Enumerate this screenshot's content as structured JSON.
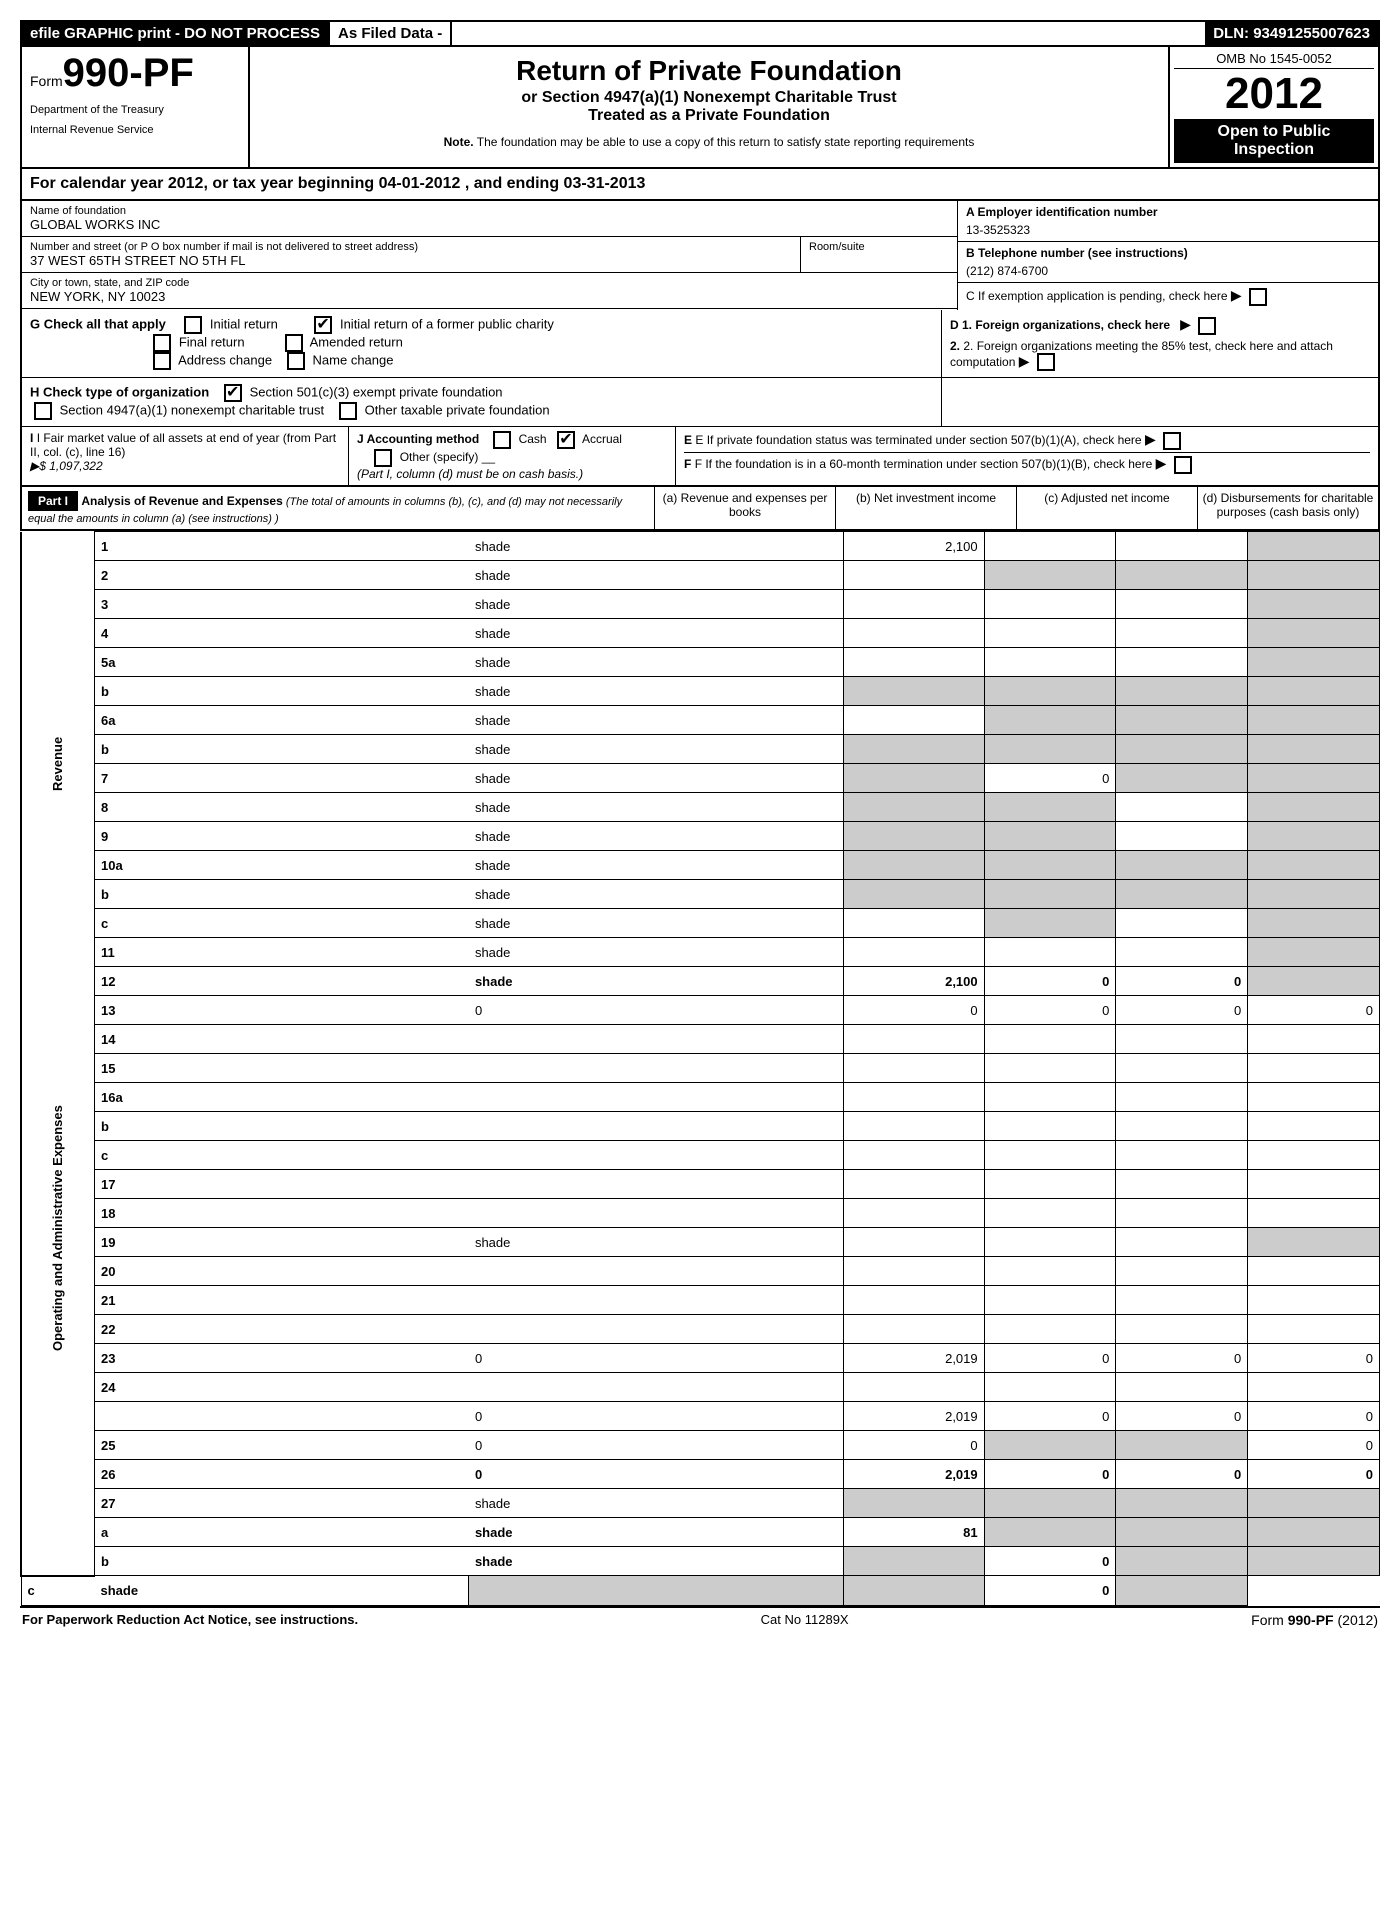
{
  "topbar": {
    "efile": "efile GRAPHIC print - DO NOT PROCESS",
    "asfiled": "As Filed Data -",
    "dln": "DLN: 93491255007623"
  },
  "header": {
    "form_prefix": "Form",
    "form_num": "990-PF",
    "dept1": "Department of the Treasury",
    "dept2": "Internal Revenue Service",
    "title": "Return of Private Foundation",
    "sub1": "or Section 4947(a)(1) Nonexempt Charitable Trust",
    "sub2": "Treated as a Private Foundation",
    "note_b": "Note.",
    "note": " The foundation may be able to use a copy of this return to satisfy state reporting requirements",
    "omb": "OMB No 1545-0052",
    "year": "2012",
    "open": "Open to Public Inspection"
  },
  "cal": "For calendar year 2012, or tax year beginning 04-01-2012        , and ending 03-31-2013",
  "info": {
    "name_label": "Name of foundation",
    "name": "GLOBAL WORKS INC",
    "addr_label": "Number and street (or P O  box number if mail is not delivered to street address)",
    "addr": "37 WEST 65TH STREET NO 5TH FL",
    "room_label": "Room/suite",
    "city_label": "City or town, state, and ZIP code",
    "city": "NEW YORK, NY  10023",
    "ein_label": "A Employer identification number",
    "ein": "13-3525323",
    "tel_label": "B Telephone number (see instructions)",
    "tel": "(212) 874-6700",
    "c_label": "C If exemption application is pending, check here"
  },
  "g": {
    "label": "G Check all that apply",
    "initial": "Initial return",
    "initial_former": "Initial return of a former public charity",
    "final": "Final return",
    "amended": "Amended return",
    "addr_change": "Address change",
    "name_change": "Name change"
  },
  "d": {
    "d1": "D 1. Foreign organizations, check here",
    "d2": "2. Foreign organizations meeting the 85% test, check here and attach computation"
  },
  "h": {
    "label": "H Check type of organization",
    "s501": "Section 501(c)(3) exempt private foundation",
    "s4947": "Section 4947(a)(1) nonexempt charitable trust",
    "other": "Other taxable private foundation"
  },
  "i": {
    "label": "I Fair market value of all assets at end of year (from Part II, col. (c), line 16)",
    "val": "▶$  1,097,322"
  },
  "j": {
    "label": "J Accounting method",
    "cash": "Cash",
    "accrual": "Accrual",
    "other": "Other (specify)",
    "note": "(Part I, column (d) must be on cash basis.)"
  },
  "e": {
    "e1": "E If private foundation status was terminated under section 507(b)(1)(A), check here",
    "f1": "F  If the foundation is in a 60-month termination under section 507(b)(1)(B), check here"
  },
  "part1": {
    "label": "Part I",
    "title": "Analysis of Revenue and Expenses",
    "note": " (The total of amounts in columns (b), (c), and (d) may not necessarily equal the amounts in column (a) (see instructions) )",
    "col_a": "(a) Revenue and expenses per books",
    "col_b": "(b) Net investment income",
    "col_c": "(c) Adjusted net income",
    "col_d": "(d) Disbursements for charitable purposes (cash basis only)"
  },
  "side": {
    "rev": "Revenue",
    "exp": "Operating and Administrative Expenses"
  },
  "rows": [
    {
      "n": "1",
      "d": "shade",
      "a": "2,100",
      "b": "",
      "c": ""
    },
    {
      "n": "2",
      "d": "shade",
      "a": "",
      "b": "shade",
      "c": "shade"
    },
    {
      "n": "3",
      "d": "shade",
      "a": "",
      "b": "",
      "c": ""
    },
    {
      "n": "4",
      "d": "shade",
      "a": "",
      "b": "",
      "c": ""
    },
    {
      "n": "5a",
      "d": "shade",
      "a": "",
      "b": "",
      "c": ""
    },
    {
      "n": "b",
      "d": "shade",
      "a": "shade",
      "b": "shade",
      "c": "shade"
    },
    {
      "n": "6a",
      "d": "shade",
      "a": "",
      "b": "shade",
      "c": "shade"
    },
    {
      "n": "b",
      "d": "shade",
      "a": "shade",
      "b": "shade",
      "c": "shade"
    },
    {
      "n": "7",
      "d": "shade",
      "a": "shade",
      "b": "0",
      "c": "shade"
    },
    {
      "n": "8",
      "d": "shade",
      "a": "shade",
      "b": "shade",
      "c": ""
    },
    {
      "n": "9",
      "d": "shade",
      "a": "shade",
      "b": "shade",
      "c": ""
    },
    {
      "n": "10a",
      "d": "shade",
      "a": "shade",
      "b": "shade",
      "c": "shade"
    },
    {
      "n": "b",
      "d": "shade",
      "a": "shade",
      "b": "shade",
      "c": "shade"
    },
    {
      "n": "c",
      "d": "shade",
      "a": "",
      "b": "shade",
      "c": ""
    },
    {
      "n": "11",
      "d": "shade",
      "a": "",
      "b": "",
      "c": ""
    },
    {
      "n": "12",
      "d": "shade",
      "a": "2,100",
      "b": "0",
      "c": "0",
      "bold": true
    },
    {
      "n": "13",
      "d": "0",
      "a": "0",
      "b": "0",
      "c": "0"
    },
    {
      "n": "14",
      "d": "",
      "a": "",
      "b": "",
      "c": ""
    },
    {
      "n": "15",
      "d": "",
      "a": "",
      "b": "",
      "c": ""
    },
    {
      "n": "16a",
      "d": "",
      "a": "",
      "b": "",
      "c": ""
    },
    {
      "n": "b",
      "d": "",
      "a": "",
      "b": "",
      "c": ""
    },
    {
      "n": "c",
      "d": "",
      "a": "",
      "b": "",
      "c": ""
    },
    {
      "n": "17",
      "d": "",
      "a": "",
      "b": "",
      "c": ""
    },
    {
      "n": "18",
      "d": "",
      "a": "",
      "b": "",
      "c": ""
    },
    {
      "n": "19",
      "d": "shade",
      "a": "",
      "b": "",
      "c": ""
    },
    {
      "n": "20",
      "d": "",
      "a": "",
      "b": "",
      "c": ""
    },
    {
      "n": "21",
      "d": "",
      "a": "",
      "b": "",
      "c": ""
    },
    {
      "n": "22",
      "d": "",
      "a": "",
      "b": "",
      "c": ""
    },
    {
      "n": "23",
      "d": "0",
      "a": "2,019",
      "b": "0",
      "c": "0"
    },
    {
      "n": "24",
      "d": "",
      "a": "",
      "b": "",
      "c": "",
      "bold": true,
      "noborder": true
    },
    {
      "n": "",
      "d": "0",
      "a": "2,019",
      "b": "0",
      "c": "0"
    },
    {
      "n": "25",
      "d": "0",
      "a": "0",
      "b": "shade",
      "c": "shade"
    },
    {
      "n": "26",
      "d": "0",
      "a": "2,019",
      "b": "0",
      "c": "0",
      "bold": true
    },
    {
      "n": "27",
      "d": "shade",
      "a": "shade",
      "b": "shade",
      "c": "shade"
    },
    {
      "n": "a",
      "d": "shade",
      "a": "81",
      "b": "shade",
      "c": "shade",
      "bold": true
    },
    {
      "n": "b",
      "d": "shade",
      "a": "shade",
      "b": "0",
      "c": "shade",
      "bold": true
    },
    {
      "n": "c",
      "d": "shade",
      "a": "shade",
      "b": "shade",
      "c": "0",
      "bold": true
    }
  ],
  "footer": {
    "left": "For Paperwork Reduction Act Notice, see instructions.",
    "mid": "Cat No 11289X",
    "right": "Form 990-PF (2012)"
  }
}
